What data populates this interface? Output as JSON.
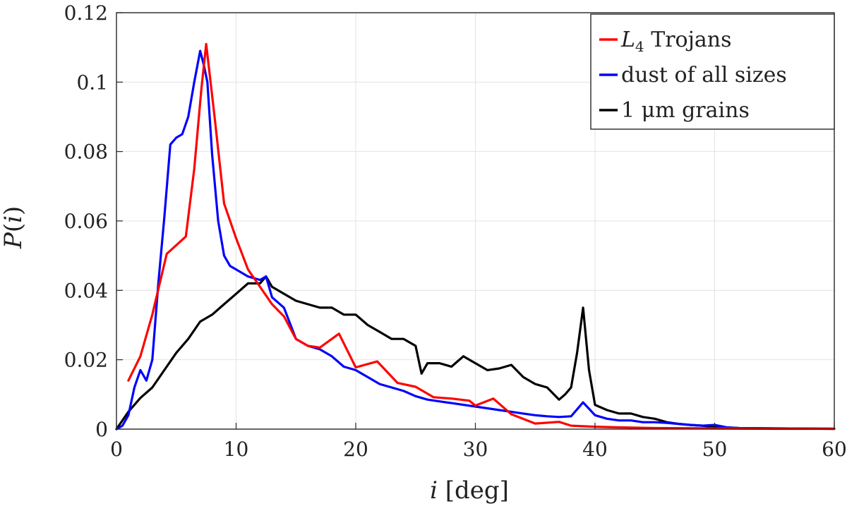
{
  "chart_data": {
    "type": "line",
    "title": "",
    "xlabel": "i [deg]",
    "ylabel": "P(i)",
    "xlim": [
      0,
      60
    ],
    "ylim": [
      0,
      0.12
    ],
    "x_ticks": [
      0,
      10,
      20,
      30,
      40,
      50,
      60
    ],
    "y_ticks": [
      0,
      0.02,
      0.04,
      0.06,
      0.08,
      0.1,
      0.12
    ],
    "x_tick_labels": [
      "0",
      "10",
      "20",
      "30",
      "40",
      "50",
      "60"
    ],
    "y_tick_labels": [
      "0",
      "0.02",
      "0.04",
      "0.06",
      "0.08",
      "0.1",
      "0.12"
    ],
    "grid": true,
    "legend_position": "top-right",
    "series": [
      {
        "name": "L4 Trojans",
        "legend_main": "L",
        "legend_sub": "4",
        "legend_rest": " Trojans",
        "color": "#ff0000",
        "x": [
          1,
          2,
          3,
          4.2,
          5.8,
          6.5,
          7.1,
          7.5,
          8.2,
          9,
          10,
          11,
          12,
          13,
          14,
          15,
          16,
          17,
          18,
          18.6,
          20,
          21.8,
          23.5,
          25,
          26.5,
          28,
          29.5,
          30,
          31.5,
          33,
          35,
          37,
          38,
          40,
          42,
          45,
          50,
          55,
          60
        ],
        "y": [
          0.014,
          0.021,
          0.033,
          0.0505,
          0.0555,
          0.075,
          0.098,
          0.111,
          0.09,
          0.065,
          0.055,
          0.046,
          0.041,
          0.036,
          0.0325,
          0.026,
          0.024,
          0.0235,
          0.026,
          0.0275,
          0.0178,
          0.0195,
          0.0133,
          0.0122,
          0.0092,
          0.0088,
          0.0082,
          0.0068,
          0.0088,
          0.0043,
          0.0016,
          0.0021,
          0.001,
          0.0007,
          0.0005,
          0.0003,
          0.0002,
          0.0001,
          0.0001
        ]
      },
      {
        "name": "dust of all sizes",
        "legend_text": "dust of all sizes",
        "color": "#0000ff",
        "x": [
          0,
          0.5,
          1,
          1.5,
          2,
          2.5,
          3,
          3.5,
          4,
          4.5,
          5,
          5.5,
          6,
          6.5,
          7,
          7.3,
          7.6,
          8,
          8.5,
          9,
          9.5,
          10,
          11,
          12,
          12.5,
          13,
          14,
          15,
          16,
          17,
          18,
          19,
          20,
          21,
          22,
          23,
          24,
          25,
          26,
          27,
          28,
          29,
          30,
          31,
          32,
          33,
          34,
          35,
          36,
          37,
          38,
          39,
          40,
          41,
          42,
          43,
          44,
          45,
          46,
          47,
          48,
          49,
          50,
          51,
          52,
          55,
          60
        ],
        "y": [
          0,
          0.001,
          0.004,
          0.012,
          0.017,
          0.014,
          0.02,
          0.042,
          0.061,
          0.082,
          0.084,
          0.085,
          0.09,
          0.1,
          0.109,
          0.105,
          0.1,
          0.079,
          0.06,
          0.05,
          0.047,
          0.046,
          0.044,
          0.043,
          0.044,
          0.038,
          0.035,
          0.026,
          0.024,
          0.023,
          0.021,
          0.018,
          0.017,
          0.015,
          0.013,
          0.012,
          0.011,
          0.0095,
          0.0085,
          0.008,
          0.0075,
          0.007,
          0.0065,
          0.006,
          0.0055,
          0.005,
          0.0045,
          0.004,
          0.0037,
          0.0035,
          0.0037,
          0.0077,
          0.004,
          0.003,
          0.0025,
          0.0025,
          0.002,
          0.002,
          0.0018,
          0.0015,
          0.0012,
          0.001,
          0.0012,
          0.0005,
          0.0003,
          0.0002,
          0.0001
        ]
      },
      {
        "name": "1 μm grains",
        "legend_text": "1 μm grains",
        "color": "#000000",
        "x": [
          0,
          1,
          2,
          3,
          4,
          5,
          6,
          7,
          8,
          9,
          10,
          11,
          12,
          12.5,
          13,
          14,
          15,
          16,
          17,
          18,
          19,
          20,
          21,
          22,
          23,
          24,
          25,
          25.5,
          26,
          27,
          28,
          29,
          30,
          31,
          32,
          33,
          34,
          35,
          36,
          37,
          37.5,
          38,
          38.5,
          39,
          39.5,
          40,
          41,
          42,
          43,
          44,
          45,
          46,
          47,
          48,
          49,
          50,
          52,
          55,
          60
        ],
        "y": [
          0,
          0.005,
          0.009,
          0.012,
          0.017,
          0.022,
          0.026,
          0.031,
          0.033,
          0.036,
          0.039,
          0.042,
          0.042,
          0.044,
          0.041,
          0.039,
          0.037,
          0.036,
          0.035,
          0.035,
          0.033,
          0.033,
          0.03,
          0.028,
          0.026,
          0.026,
          0.024,
          0.016,
          0.019,
          0.019,
          0.018,
          0.021,
          0.019,
          0.017,
          0.0175,
          0.0185,
          0.015,
          0.013,
          0.012,
          0.0085,
          0.01,
          0.012,
          0.022,
          0.035,
          0.017,
          0.007,
          0.0055,
          0.0045,
          0.0045,
          0.0035,
          0.003,
          0.002,
          0.0015,
          0.0012,
          0.001,
          0.0006,
          0.0003,
          0.0002,
          0.0001
        ]
      }
    ]
  }
}
